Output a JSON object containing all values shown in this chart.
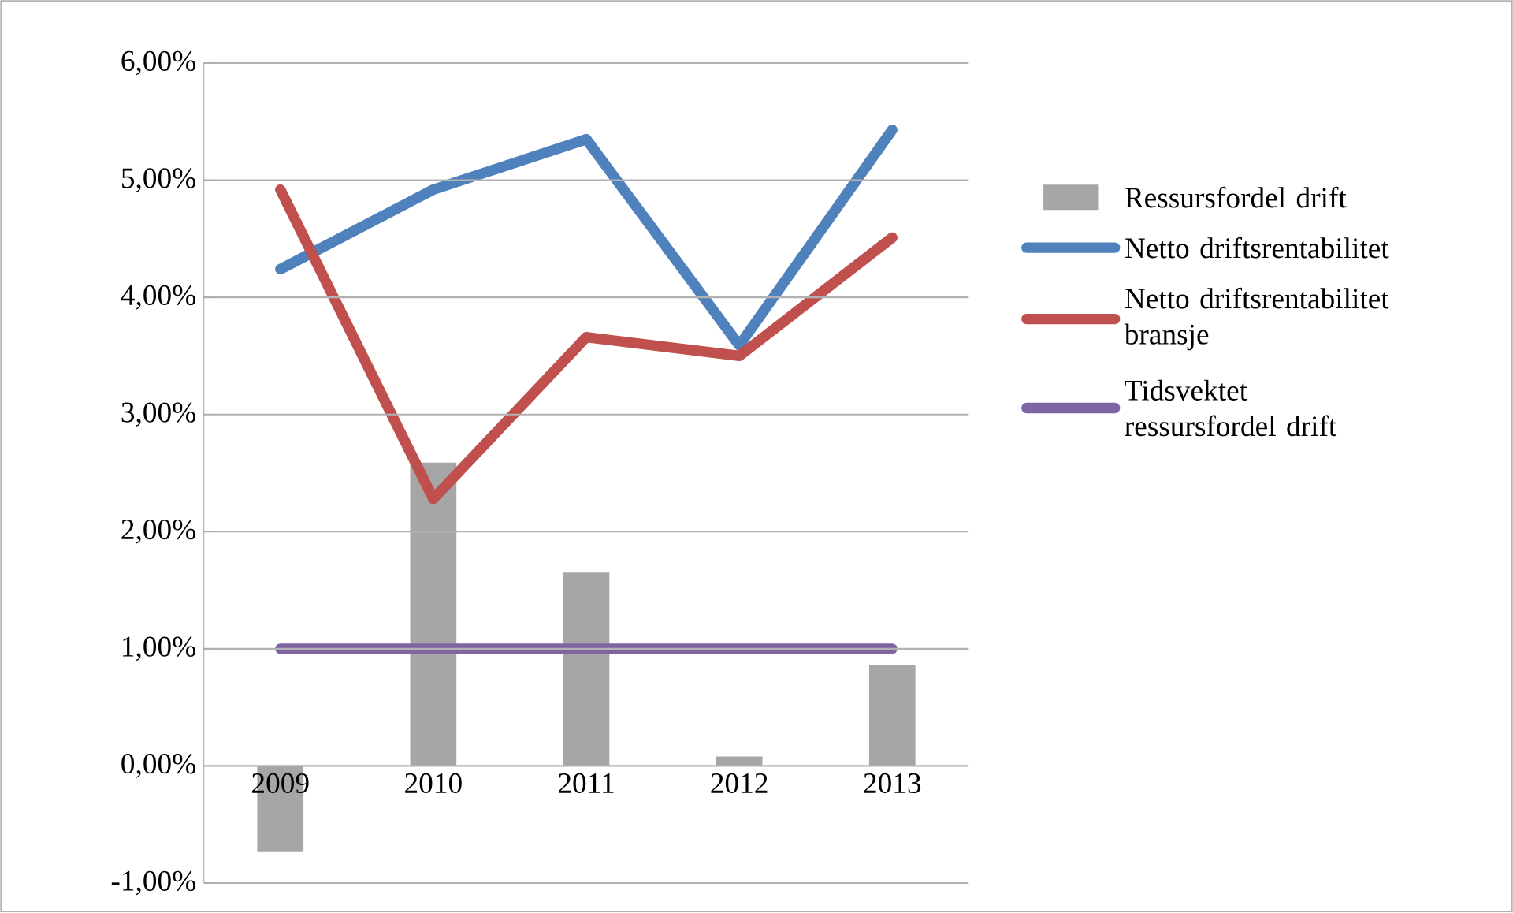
{
  "chart_data": {
    "type": "line",
    "categories": [
      "2009",
      "2010",
      "2011",
      "2012",
      "2013"
    ],
    "series": [
      {
        "name": "Ressursfordel drift",
        "type": "bar",
        "color": "#a6a6a6",
        "values": [
          -0.73,
          2.59,
          1.65,
          0.08,
          0.86
        ]
      },
      {
        "name": "Netto driftsrentabilitet",
        "color": "#4f81bd",
        "values": [
          4.24,
          4.92,
          5.35,
          3.59,
          5.43
        ]
      },
      {
        "name": "Netto driftsrentabilitet bransje",
        "color": "#c0504d",
        "values": [
          4.92,
          2.28,
          3.66,
          3.5,
          4.51
        ]
      },
      {
        "name": "Tidsvektet ressursfordel drift",
        "color": "#8064a2",
        "values": [
          1.0,
          1.0,
          1.0,
          1.0,
          1.0
        ]
      }
    ],
    "ylim": [
      -1,
      6
    ],
    "yticks": [
      {
        "value": -1,
        "label": "-1,00%"
      },
      {
        "value": 0,
        "label": "0,00%"
      },
      {
        "value": 1,
        "label": "1,00%"
      },
      {
        "value": 2,
        "label": "2,00%"
      },
      {
        "value": 3,
        "label": "3,00%"
      },
      {
        "value": 4,
        "label": "4,00%"
      },
      {
        "value": 5,
        "label": "5,00%"
      },
      {
        "value": 6,
        "label": "6,00%"
      }
    ],
    "grid": "y",
    "legend": "right",
    "marker": "none",
    "line_style": "solid"
  }
}
